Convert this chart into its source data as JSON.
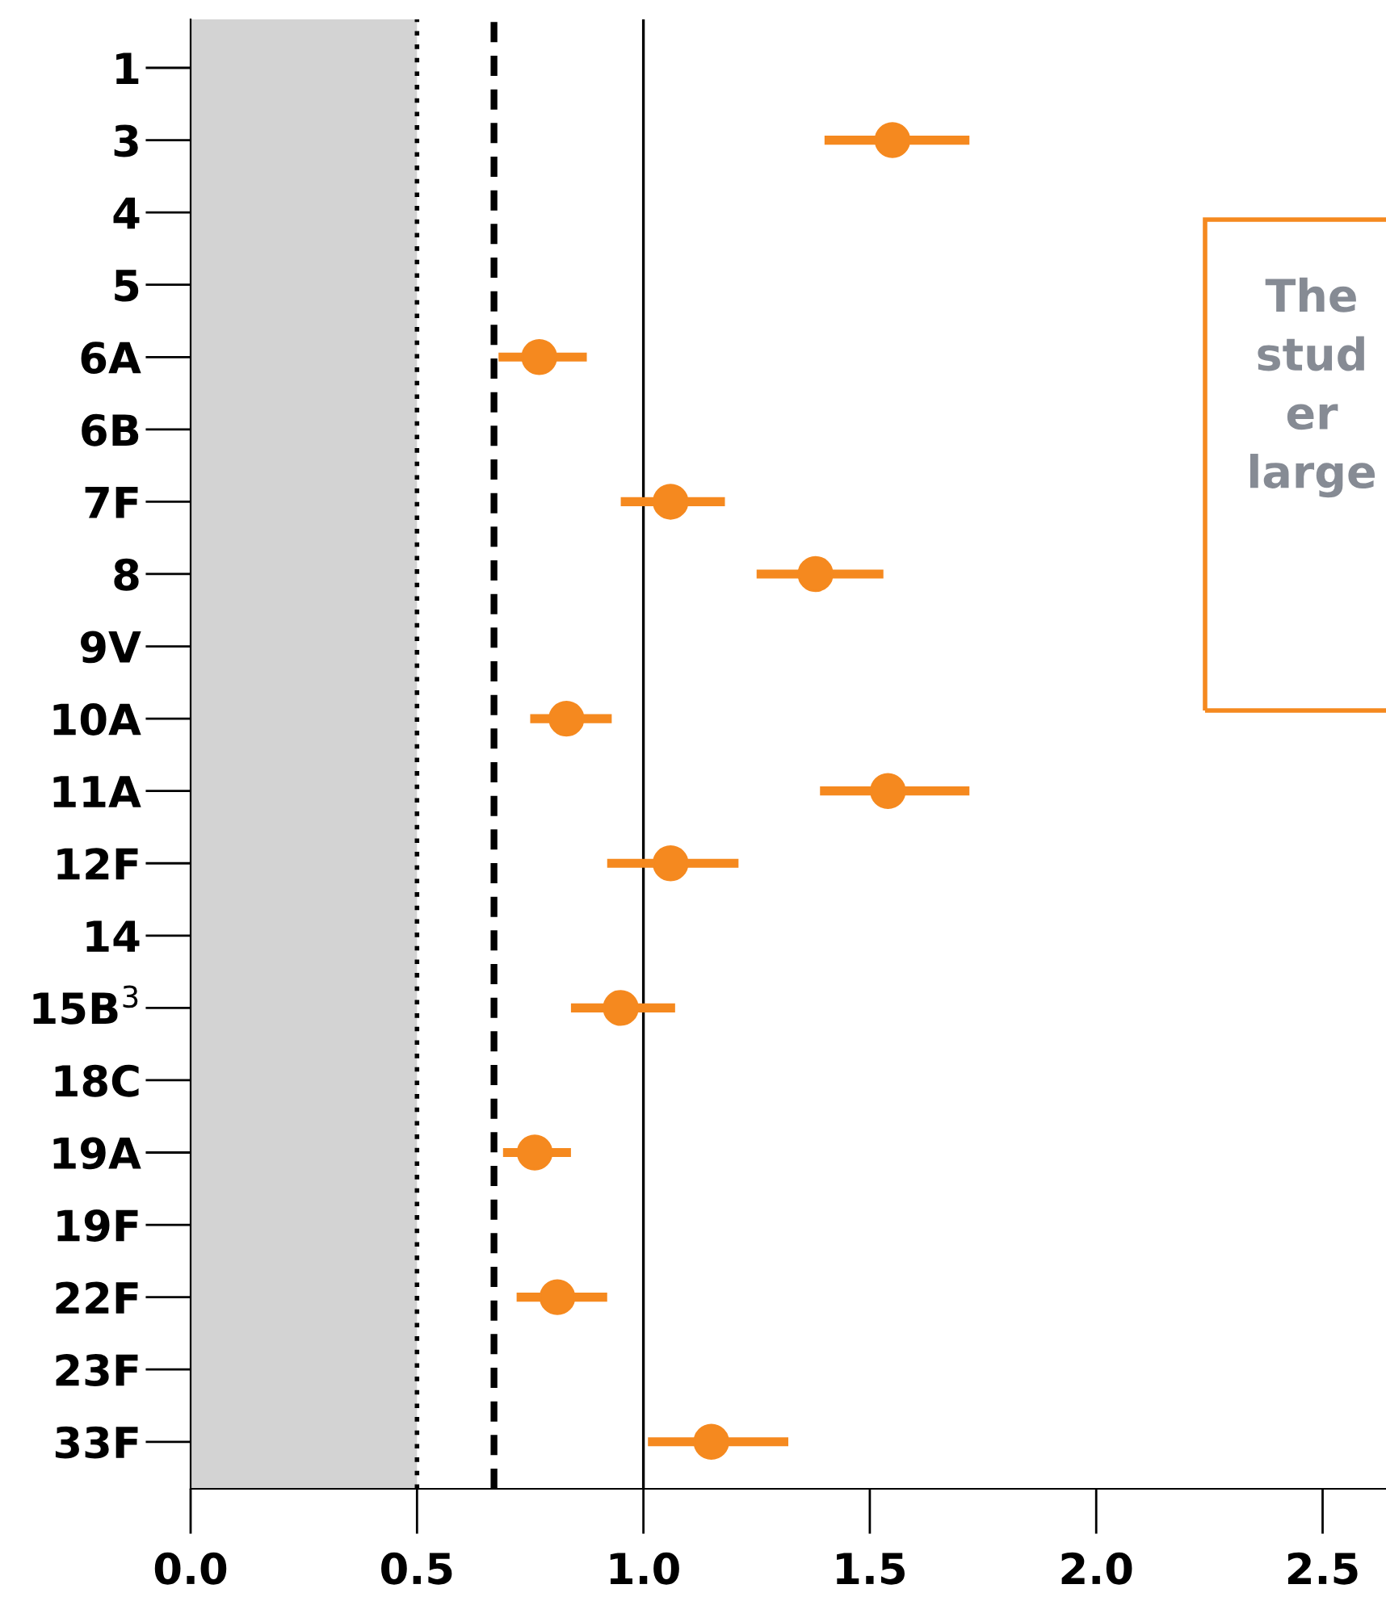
{
  "chart_data": {
    "type": "scatter",
    "orientation": "horizontal",
    "marker": "circle",
    "grid": false,
    "categories": [
      "1",
      "3",
      "4",
      "5",
      "6A",
      "6B",
      "7F",
      "8",
      "9V",
      "10A",
      "11A",
      "12F",
      "14",
      "15B$^{3}$",
      "18C",
      "19A",
      "19F",
      "22F",
      "23F",
      "33F"
    ],
    "series": [
      {
        "color": "#f5891f",
        "values": [
          null,
          1.55,
          null,
          null,
          0.77,
          null,
          1.06,
          1.38,
          null,
          0.83,
          1.54,
          1.06,
          null,
          0.95,
          null,
          0.76,
          null,
          0.81,
          null,
          1.15
        ],
        "errors": [
          null,
          [
            1.4,
            1.72
          ],
          null,
          null,
          [
            0.68,
            0.875
          ],
          null,
          [
            0.95,
            1.18
          ],
          [
            1.25,
            1.53
          ],
          null,
          [
            0.75,
            0.93
          ],
          [
            1.39,
            1.72
          ],
          [
            0.92,
            1.21
          ],
          null,
          [
            0.84,
            1.07
          ],
          null,
          [
            0.69,
            0.84
          ],
          null,
          [
            0.72,
            0.92
          ],
          null,
          [
            1.01,
            1.32
          ]
        ]
      }
    ],
    "xlim": [
      0,
      2.64
    ],
    "xticks": [
      {
        "value": 0,
        "label": "0.0"
      },
      {
        "value": 0.5,
        "label": "0.5"
      },
      {
        "value": 1,
        "label": "1.0"
      },
      {
        "value": 1.5,
        "label": "1.5"
      },
      {
        "value": 2,
        "label": "2.0"
      },
      {
        "value": 2.5,
        "label": "2.5"
      }
    ],
    "bands": [
      {
        "axis": "x",
        "from": 0,
        "to": 0.5,
        "color": "#d3d3d3"
      }
    ],
    "ref_lines": [
      {
        "axis": "x",
        "value": 0.5,
        "line_style": "dotted",
        "color": "#000000"
      },
      {
        "axis": "x",
        "value": 0.67,
        "line_style": "dashed",
        "color": "#000000"
      },
      {
        "axis": "x",
        "value": 1,
        "line_style": "solid",
        "color": "#000000"
      }
    ],
    "annotations": [
      "The\nstud\ner\nlarge"
    ]
  }
}
